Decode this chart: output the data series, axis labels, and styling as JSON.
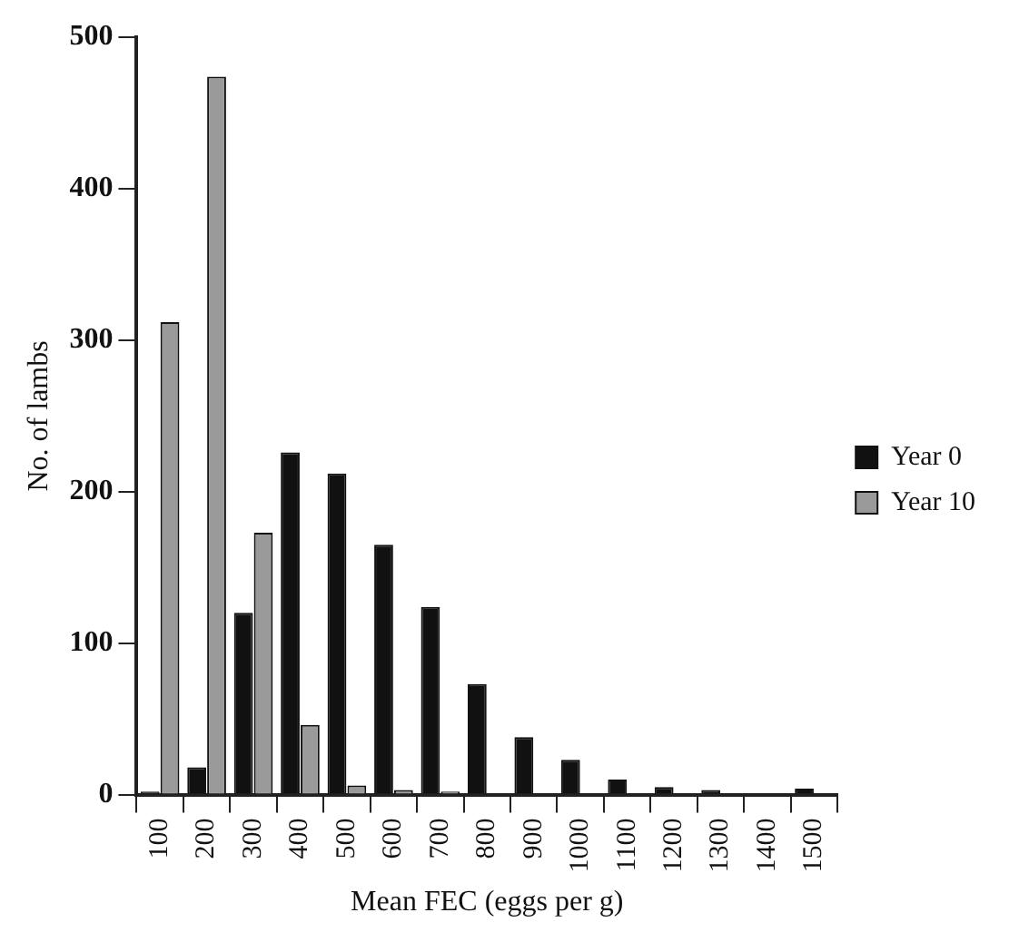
{
  "chart_data": {
    "type": "bar",
    "xlabel": "Mean FEC (eggs per g)",
    "ylabel": "No. of lambs",
    "categories": [
      "100",
      "200",
      "300",
      "400",
      "500",
      "600",
      "700",
      "800",
      "900",
      "1000",
      "1100",
      "1200",
      "1300",
      "1400",
      "1500"
    ],
    "series": [
      {
        "name": "Year 0",
        "color": "#111111",
        "values": [
          2,
          18,
          120,
          226,
          212,
          165,
          124,
          73,
          38,
          23,
          10,
          5,
          3,
          0,
          4
        ]
      },
      {
        "name": "Year 10",
        "color": "#9a9a9a",
        "values": [
          312,
          474,
          173,
          46,
          6,
          3,
          2,
          0,
          0,
          0,
          0,
          0,
          0,
          0,
          0
        ]
      }
    ],
    "ylim": [
      0,
      500
    ],
    "yticks": [
      0,
      100,
      200,
      300,
      400,
      500
    ],
    "grid": false,
    "legend": "right"
  }
}
